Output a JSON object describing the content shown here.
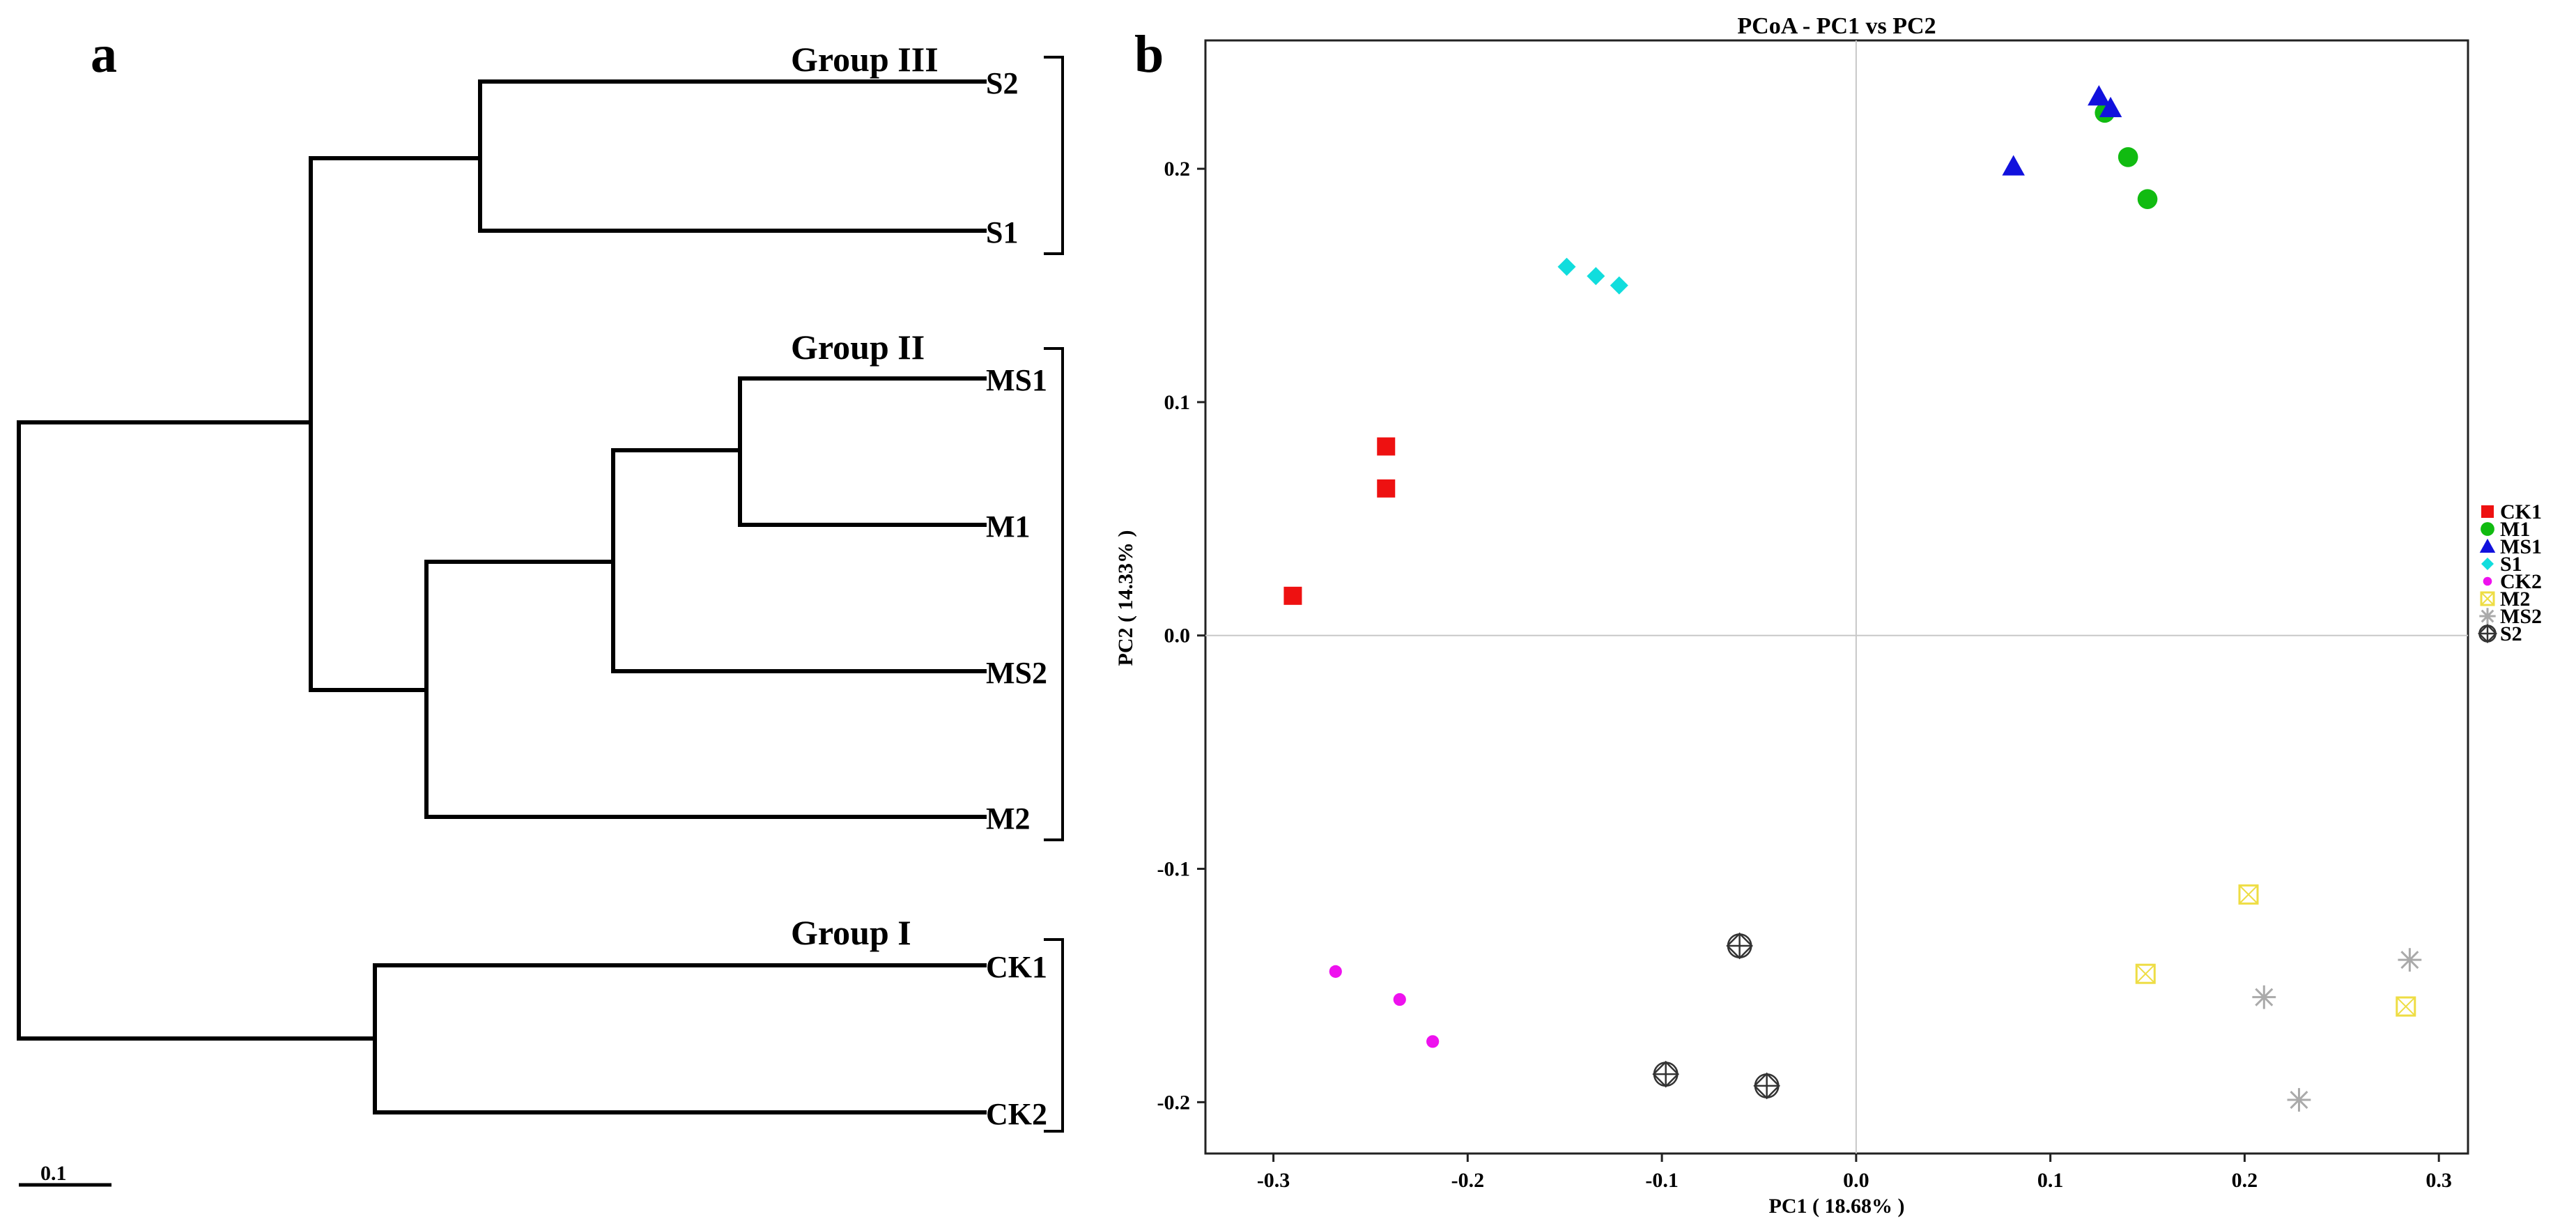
{
  "panel_a": {
    "letter": "a",
    "leaves": [
      "S2",
      "S1",
      "MS1",
      "M1",
      "MS2",
      "M2",
      "CK1",
      "CK2"
    ],
    "groups": [
      "Group III",
      "Group II",
      "Group I"
    ],
    "scale_label": "0.1"
  },
  "panel_b": {
    "letter": "b"
  },
  "chart_data": {
    "type": "scatter",
    "title": "PCoA - PC1 vs PC2",
    "xlabel": "PC1 ( 18.68% )",
    "ylabel": "PC2 ( 14.33% )",
    "xlim": [
      -0.335,
      0.315
    ],
    "ylim": [
      -0.222,
      0.255
    ],
    "xticks": [
      -0.3,
      -0.2,
      -0.1,
      0.0,
      0.1,
      0.2,
      0.3
    ],
    "xtick_labels": [
      "-0.3",
      "-0.2",
      "-0.1",
      "0.0",
      "0.1",
      "0.2",
      "0.3"
    ],
    "yticks": [
      -0.2,
      -0.1,
      0.0,
      0.1,
      0.2
    ],
    "ytick_labels": [
      "-0.2",
      "-0.1",
      "0.0",
      "0.1",
      "0.2"
    ],
    "reference_lines": {
      "x": 0,
      "y": 0
    },
    "series": [
      {
        "name": "CK1",
        "marker": "square",
        "color": "#ee1111",
        "x": [
          -0.29,
          -0.242,
          -0.242
        ],
        "y": [
          0.017,
          0.081,
          0.063
        ]
      },
      {
        "name": "M1",
        "marker": "circle",
        "color": "#11bb11",
        "x": [
          0.128,
          0.14,
          0.15
        ],
        "y": [
          0.224,
          0.205,
          0.187
        ]
      },
      {
        "name": "MS1",
        "marker": "triangle",
        "color": "#1111dd",
        "x": [
          0.081,
          0.125,
          0.131
        ],
        "y": [
          0.201,
          0.231,
          0.226
        ]
      },
      {
        "name": "S1",
        "marker": "diamond",
        "color": "#11dddd",
        "x": [
          -0.149,
          -0.134,
          -0.122
        ],
        "y": [
          0.158,
          0.154,
          0.15
        ]
      },
      {
        "name": "CK2",
        "marker": "small-circle",
        "color": "#ee11ee",
        "x": [
          -0.268,
          -0.235,
          -0.218
        ],
        "y": [
          -0.144,
          -0.156,
          -0.174
        ]
      },
      {
        "name": "M2",
        "marker": "boxed-x",
        "color": "#eedd44",
        "x": [
          0.202,
          0.149,
          0.283
        ],
        "y": [
          -0.111,
          -0.145,
          -0.159
        ]
      },
      {
        "name": "MS2",
        "marker": "star",
        "color": "#aaaaaa",
        "x": [
          0.285,
          0.21,
          0.228
        ],
        "y": [
          -0.139,
          -0.155,
          -0.199
        ]
      },
      {
        "name": "S2",
        "marker": "diamond-plus",
        "color": "#333333",
        "x": [
          -0.06,
          -0.098,
          -0.046
        ],
        "y": [
          -0.133,
          -0.188,
          -0.193
        ]
      }
    ]
  }
}
